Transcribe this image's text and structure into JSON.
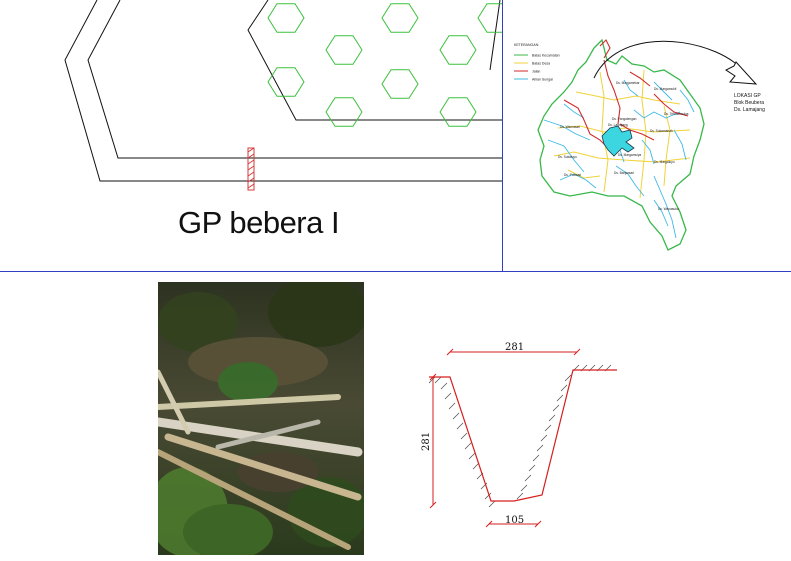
{
  "plan": {
    "title": "GP bebera I"
  },
  "map": {
    "legend_title": "KETERANGAN:",
    "legend_items": [
      {
        "label": "Batas Kecamatan",
        "color": "#38b84a"
      },
      {
        "label": "Batas Desa",
        "color": "#f0d23a"
      },
      {
        "label": "Jalan",
        "color": "#d22a2a"
      },
      {
        "label": "Aliran Sungai",
        "color": "#3fb9e6"
      }
    ],
    "location_label_1": "LOKASI GP",
    "location_label_2": "Blok Beubera",
    "location_label_3": "Ds. Lamajang",
    "place_labels": [
      "Ds. Margamukti",
      "Ds. Pangalengan",
      "Ds. Sukamanah",
      "Ds. Margamulya",
      "Ds. Lamajang",
      "Ds. Tribaktimulya",
      "Ds. Warnasari",
      "Ds. Margaluyu",
      "Ds. Banjarsari",
      "Ds. Pulosari",
      "Ds. Wanasuka",
      "Ds. Sukaluyu",
      "Ds. Margamekar"
    ]
  },
  "section": {
    "top_width": "281",
    "depth": "281",
    "bottom_width": "105"
  },
  "colors": {
    "divider": "#2f3fbf",
    "hexagon": "#3cc13c",
    "dimension": "#d61f1f",
    "marker": "#d83a3a"
  }
}
